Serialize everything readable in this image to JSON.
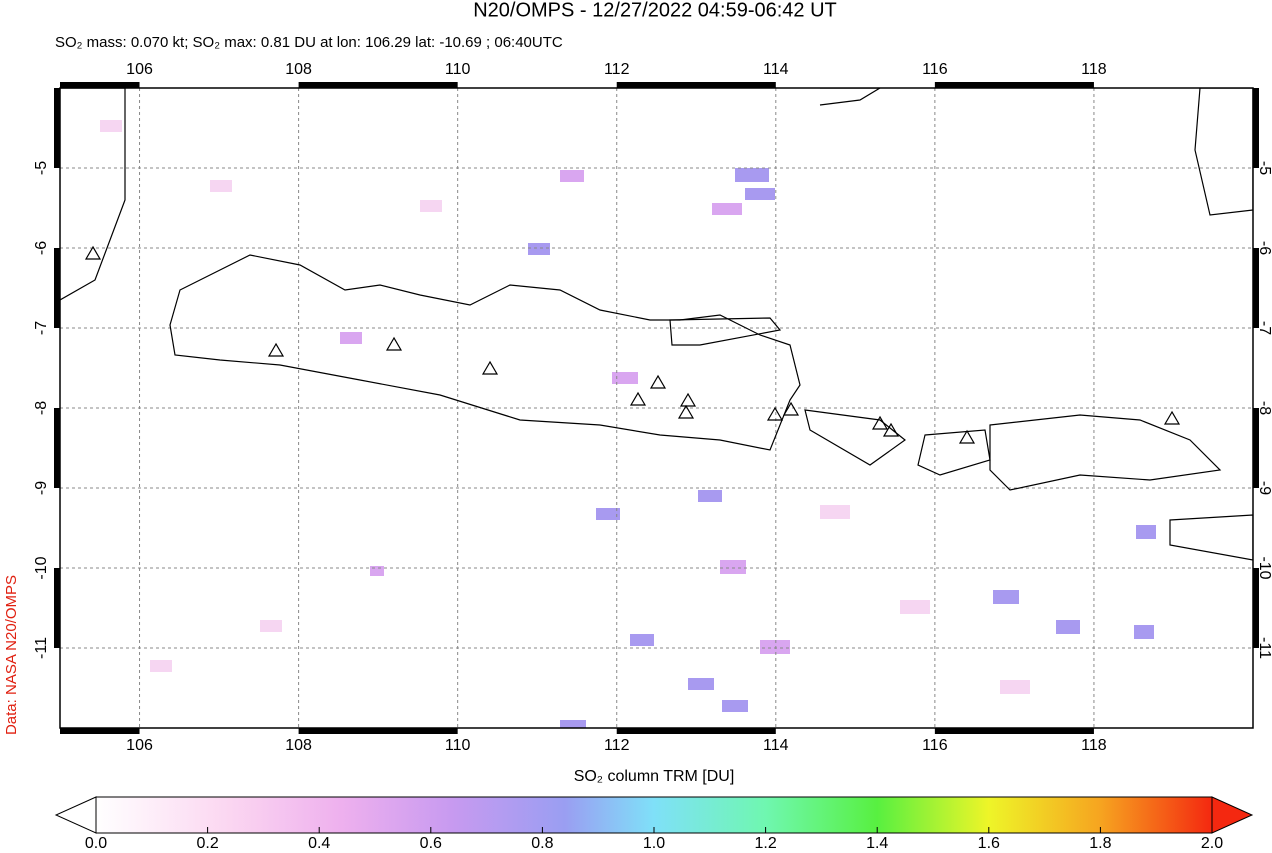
{
  "map": {
    "title": "N20/OMPS - 12/27/2022 04:59-06:42 UT",
    "subtitle": "SO₂ mass: 0.070 kt; SO₂ max: 0.81 DU at lon: 106.29 lat: -10.69 ; 06:40UTC",
    "credit": "Data: NASA N20/OMPS",
    "xlim": [
      105,
      120
    ],
    "ylim": [
      -12,
      -4
    ],
    "xticks": [
      106,
      108,
      110,
      112,
      114,
      116,
      118
    ],
    "yticks": [
      -5,
      -6,
      -7,
      -8,
      -9,
      -10,
      -11
    ],
    "grid": true
  },
  "colorbar": {
    "label": "SO₂ column TRM [DU]",
    "lim": [
      0,
      2
    ],
    "ticks": [
      {
        "value": 0,
        "label": "0.0"
      },
      0.2,
      0.4,
      0.6,
      0.8,
      {
        "value": 1,
        "label": "1.0"
      },
      1.2,
      1.4,
      1.6,
      1.8,
      {
        "value": 2,
        "label": "2.0"
      }
    ]
  }
}
